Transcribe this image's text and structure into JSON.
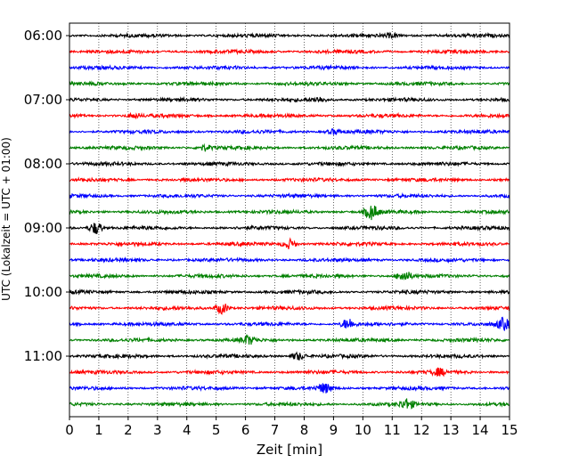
{
  "chart_data": {
    "type": "line",
    "subtype": "helicorder",
    "xlabel": "Zeit  [min]",
    "ylabel": "UTC (Lokalzeit = UTC + 01:00)",
    "xlim": [
      0,
      15
    ],
    "x_ticks": [
      "0",
      "1",
      "2",
      "3",
      "4",
      "5",
      "6",
      "7",
      "8",
      "9",
      "10",
      "11",
      "12",
      "13",
      "14",
      "15"
    ],
    "y_tick_labels": [
      "06:00",
      "07:00",
      "08:00",
      "09:00",
      "10:00",
      "11:00"
    ],
    "x_grid": "vertical dotted at each minute",
    "trace_colors": [
      "#000000",
      "#ff0000",
      "#0000ff",
      "#008000"
    ],
    "trace_start_times": [
      "06:00",
      "06:15",
      "06:30",
      "06:45",
      "07:00",
      "07:15",
      "07:30",
      "07:45",
      "08:00",
      "08:15",
      "08:30",
      "08:45",
      "09:00",
      "09:15",
      "09:30",
      "09:45",
      "10:00",
      "10:15",
      "10:30",
      "10:45",
      "11:00",
      "11:15",
      "11:30",
      "11:45"
    ],
    "events": [
      {
        "line": 0,
        "x": 11.0,
        "amp": 0.25
      },
      {
        "line": 4,
        "x": 8.5,
        "amp": 0.3
      },
      {
        "line": 5,
        "x": 2.2,
        "amp": 0.25
      },
      {
        "line": 6,
        "x": 9.0,
        "amp": 0.3
      },
      {
        "line": 7,
        "x": 4.6,
        "amp": 0.35
      },
      {
        "line": 11,
        "x": 10.3,
        "amp": 0.9
      },
      {
        "line": 12,
        "x": 0.9,
        "amp": 0.8
      },
      {
        "line": 13,
        "x": 7.5,
        "amp": 0.6
      },
      {
        "line": 15,
        "x": 11.4,
        "amp": 0.7
      },
      {
        "line": 17,
        "x": 5.2,
        "amp": 0.7
      },
      {
        "line": 18,
        "x": 9.5,
        "amp": 0.7
      },
      {
        "line": 18,
        "x": 14.8,
        "amp": 0.7
      },
      {
        "line": 19,
        "x": 6.1,
        "amp": 0.5
      },
      {
        "line": 20,
        "x": 7.8,
        "amp": 0.5
      },
      {
        "line": 21,
        "x": 12.6,
        "amp": 0.4
      },
      {
        "line": 22,
        "x": 8.7,
        "amp": 0.6
      },
      {
        "line": 23,
        "x": 11.5,
        "amp": 0.6
      }
    ]
  }
}
